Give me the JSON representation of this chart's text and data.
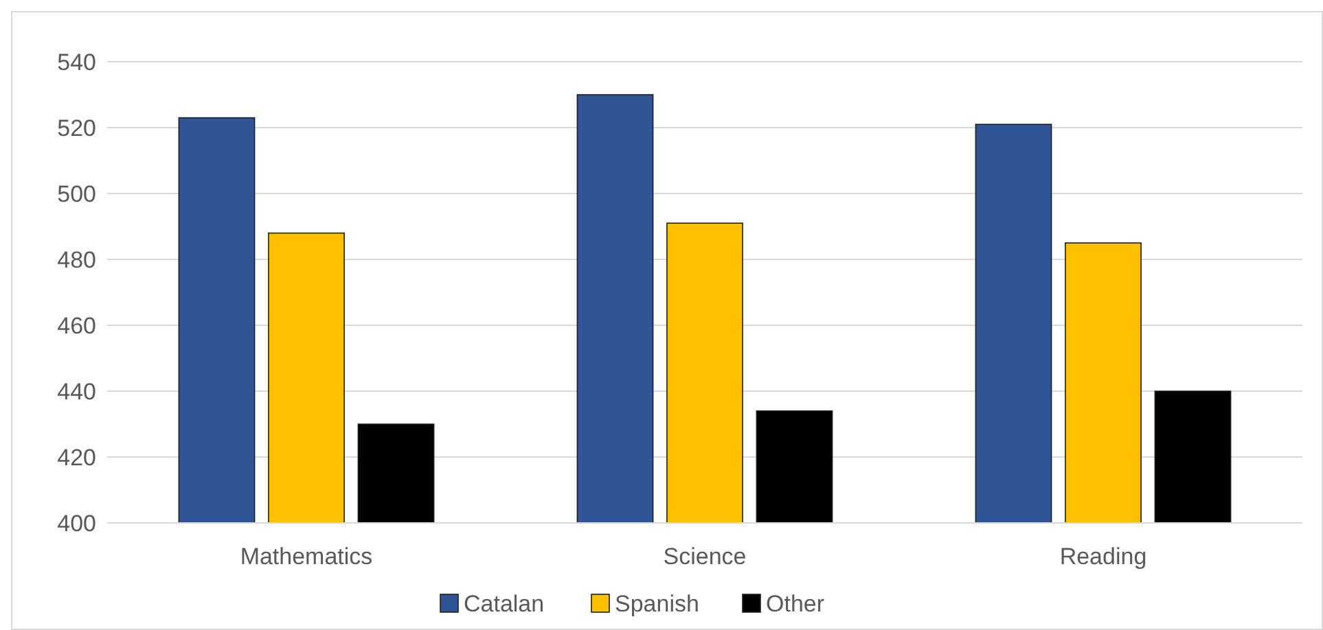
{
  "chart_data": {
    "type": "bar",
    "categories": [
      "Mathematics",
      "Science",
      "Reading"
    ],
    "series": [
      {
        "name": "Catalan",
        "color": "#2f5597",
        "values": [
          523,
          530,
          521
        ]
      },
      {
        "name": "Spanish",
        "color": "#ffc000",
        "values": [
          488,
          491,
          485
        ]
      },
      {
        "name": "Other",
        "color": "#000000",
        "values": [
          430,
          434,
          440
        ]
      }
    ],
    "ylim": [
      400,
      540
    ],
    "yticks": [
      400,
      420,
      440,
      460,
      480,
      500,
      520,
      540
    ],
    "grid": "y",
    "legend": "bottom"
  }
}
